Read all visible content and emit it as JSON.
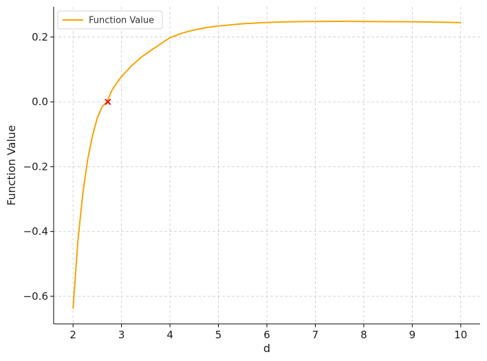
{
  "chart_data": {
    "type": "line",
    "title": "",
    "xlabel": "d",
    "ylabel": "Function Value",
    "xlim": [
      1.6,
      10.4
    ],
    "ylim": [
      -0.685,
      0.293
    ],
    "x_ticks": [
      2,
      3,
      4,
      5,
      6,
      7,
      8,
      9,
      10
    ],
    "x_tick_labels": [
      "2",
      "3",
      "4",
      "5",
      "6",
      "7",
      "8",
      "9",
      "10"
    ],
    "y_ticks": [
      -0.6,
      -0.4,
      -0.2,
      0.0,
      0.2
    ],
    "y_tick_labels": [
      "−0.6",
      "−0.4",
      "−0.2",
      "0.0",
      "0.2"
    ],
    "grid": true,
    "legend": {
      "placement": "top-left",
      "entries": [
        "Function Value"
      ]
    },
    "series": [
      {
        "name": "Function Value",
        "color": "#f5a300",
        "x": [
          2.0,
          2.1,
          2.2,
          2.3,
          2.4,
          2.5,
          2.6,
          2.7,
          2.8,
          2.9,
          3.0,
          3.2,
          3.4,
          3.6,
          3.8,
          4.0,
          4.25,
          4.5,
          4.75,
          5.0,
          5.5,
          6.0,
          6.5,
          7.0,
          7.5,
          8.0,
          8.5,
          9.0,
          9.5,
          10.0
        ],
        "y": [
          -0.638,
          -0.43,
          -0.285,
          -0.18,
          -0.105,
          -0.05,
          -0.015,
          0.0,
          0.035,
          0.058,
          0.078,
          0.11,
          0.137,
          0.158,
          0.178,
          0.198,
          0.212,
          0.222,
          0.229,
          0.234,
          0.241,
          0.245,
          0.247,
          0.248,
          0.2485,
          0.248,
          0.2475,
          0.247,
          0.246,
          0.2445
        ]
      }
    ],
    "markers": [
      {
        "x": 2.718,
        "y": 0.0,
        "symbol": "x",
        "color": "#e8141b"
      }
    ]
  }
}
